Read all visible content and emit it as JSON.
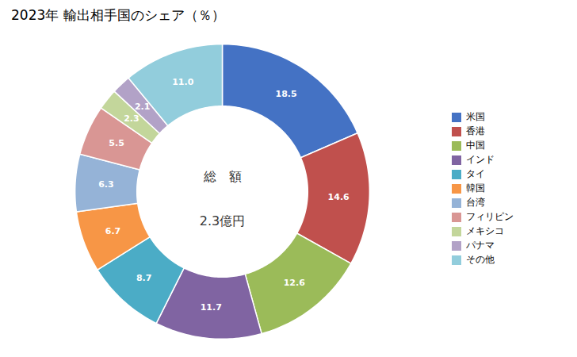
{
  "chart_data": {
    "type": "pie",
    "title": "2023年 輸出相手国のシェア（％）",
    "annotations": [
      "総　額",
      "2.3億円"
    ],
    "categories": [
      "米国",
      "香港",
      "中国",
      "インド",
      "タイ",
      "韓国",
      "台湾",
      "フィリピン",
      "メキシコ",
      "パナマ",
      "その他"
    ],
    "values": [
      18.5,
      14.6,
      12.6,
      11.7,
      8.7,
      6.7,
      6.3,
      5.5,
      2.3,
      2.1,
      11.0
    ],
    "value_labels": [
      "18.5",
      "14.6",
      "12.6",
      "11.7",
      "8.7",
      "6.7",
      "6.3",
      "5.5",
      "2.3",
      "2.1",
      "11.0"
    ],
    "colors": [
      "#4472C4",
      "#C0504D",
      "#9BBB59",
      "#8064A2",
      "#4BACC6",
      "#F79646",
      "#95B3D7",
      "#D99694",
      "#C3D69B",
      "#B2A2C7",
      "#92CDDC"
    ],
    "data_labels": true,
    "legend": "right"
  }
}
